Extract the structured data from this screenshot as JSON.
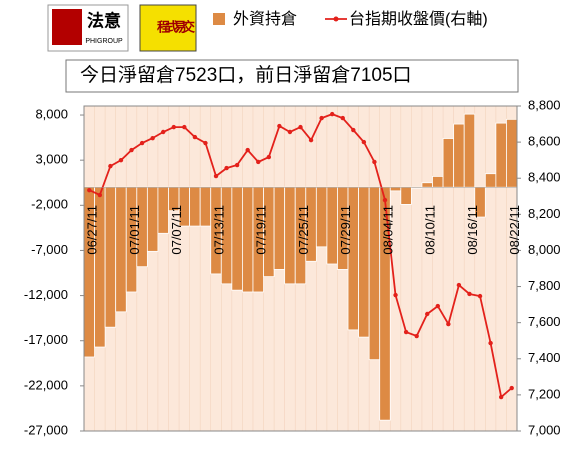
{
  "header": {
    "logo1": "法意",
    "logo1_sub": "PHIGROUP",
    "logo2": "程式易交"
  },
  "chart_data": {
    "type": "combo",
    "subtitle": "今日淨留倉7523口，前日淨留倉7105口",
    "categories": [
      "06/27/11",
      null,
      null,
      null,
      "07/01/11",
      null,
      null,
      null,
      "07/07/11",
      null,
      null,
      null,
      "07/13/11",
      null,
      null,
      null,
      "07/19/11",
      null,
      null,
      null,
      "07/25/11",
      null,
      null,
      null,
      "07/29/11",
      null,
      null,
      null,
      "08/04/11",
      null,
      null,
      null,
      "08/10/11",
      null,
      null,
      null,
      "08/16/11",
      null,
      null,
      null,
      "08/22/11"
    ],
    "series": [
      {
        "name": "外資持倉",
        "type": "bar",
        "color": "#dd8a44",
        "values": [
          -18800,
          -17700,
          -15500,
          -13800,
          -11600,
          -8800,
          -7100,
          -5100,
          -2600,
          -4300,
          -4300,
          -4300,
          -9600,
          -10700,
          -11400,
          -11600,
          -11600,
          -9900,
          -9100,
          -10700,
          -10700,
          -8200,
          -6600,
          -8500,
          -9100,
          -15800,
          -16600,
          -19100,
          -25800,
          -400,
          -1900,
          -100,
          500,
          1200,
          5400,
          7000,
          8100,
          -3300,
          1500,
          7105,
          7523
        ]
      },
      {
        "name": "台指期收盤價(右軸)",
        "type": "line",
        "axis": "y2",
        "color": "#e3211b",
        "values": [
          8334,
          8307,
          8467,
          8500,
          8556,
          8595,
          8622,
          8656,
          8683,
          8683,
          8628,
          8595,
          8412,
          8456,
          8473,
          8556,
          8490,
          8517,
          8689,
          8656,
          8683,
          8611,
          8733,
          8755,
          8733,
          8667,
          8600,
          8490,
          8279,
          7753,
          7548,
          7526,
          7648,
          7692,
          7592,
          7808,
          7759,
          7747,
          7487,
          7188,
          7238
        ]
      }
    ],
    "ylim": [
      -27000,
      9000
    ],
    "yticks": [
      {
        "value": 8000,
        "label": "8,000"
      },
      {
        "value": 3000,
        "label": "3,000"
      },
      {
        "value": -2000,
        "label": "-2,000"
      },
      {
        "value": -7000,
        "label": "-7,000"
      },
      {
        "value": -12000,
        "label": "-12,000"
      },
      {
        "value": -17000,
        "label": "-17,000"
      },
      {
        "value": -22000,
        "label": "-22,000"
      },
      {
        "value": -27000,
        "label": "-27,000"
      }
    ],
    "y2lim": [
      7000,
      8800
    ],
    "y2ticks": [
      {
        "value": 8800,
        "label": "8,800"
      },
      {
        "value": 8600,
        "label": "8,600"
      },
      {
        "value": 8400,
        "label": "8,400"
      },
      {
        "value": 8200,
        "label": "8,200"
      },
      {
        "value": 8000,
        "label": "8,000"
      },
      {
        "value": 7800,
        "label": "7,800"
      },
      {
        "value": 7600,
        "label": "7,600"
      },
      {
        "value": 7400,
        "label": "7,400"
      },
      {
        "value": 7200,
        "label": "7,200"
      },
      {
        "value": 7000,
        "label": "7,000"
      }
    ]
  }
}
